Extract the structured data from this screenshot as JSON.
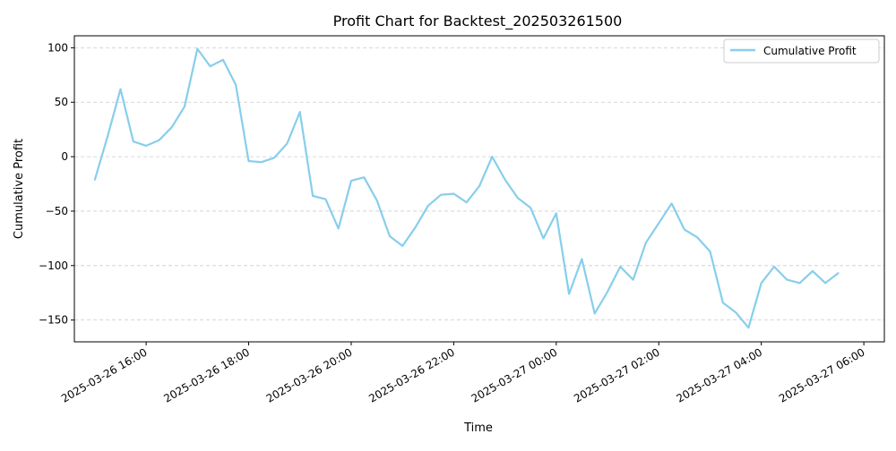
{
  "chart_data": {
    "type": "line",
    "title": "Profit Chart for Backtest_202503261500",
    "xlabel": "Time",
    "ylabel": "Cumulative Profit",
    "x_axis_type": "time",
    "xlim": [
      "2025-03-26 14:36",
      "2025-03-27 06:24"
    ],
    "ylim": [
      -170,
      111
    ],
    "yticks": [
      100,
      50,
      0,
      -50,
      -100,
      -150
    ],
    "ytick_labels": [
      "100",
      "50",
      "0",
      "−50",
      "−100",
      "−150"
    ],
    "xticks": [
      "2025-03-26 16:00",
      "2025-03-26 18:00",
      "2025-03-26 20:00",
      "2025-03-26 22:00",
      "2025-03-27 00:00",
      "2025-03-27 02:00",
      "2025-03-27 04:00",
      "2025-03-27 06:00"
    ],
    "xtick_labels": [
      "2025-03-26 16:00",
      "2025-03-26 18:00",
      "2025-03-26 20:00",
      "2025-03-26 22:00",
      "2025-03-27 00:00",
      "2025-03-27 02:00",
      "2025-03-27 04:00",
      "2025-03-27 06:00"
    ],
    "grid": "horizontal dashed",
    "legend_position": "top-right",
    "colors": {
      "series": "#87ceeb",
      "grid": "#cccccc",
      "axis": "#000000"
    },
    "series": [
      {
        "name": "Cumulative Profit",
        "x": [
          "2025-03-26 15:00",
          "2025-03-26 15:15",
          "2025-03-26 15:30",
          "2025-03-26 15:45",
          "2025-03-26 16:00",
          "2025-03-26 16:15",
          "2025-03-26 16:30",
          "2025-03-26 16:45",
          "2025-03-26 17:00",
          "2025-03-26 17:15",
          "2025-03-26 17:30",
          "2025-03-26 17:45",
          "2025-03-26 18:00",
          "2025-03-26 18:15",
          "2025-03-26 18:30",
          "2025-03-26 18:45",
          "2025-03-26 19:00",
          "2025-03-26 19:15",
          "2025-03-26 19:30",
          "2025-03-26 19:45",
          "2025-03-26 20:00",
          "2025-03-26 20:15",
          "2025-03-26 20:30",
          "2025-03-26 20:45",
          "2025-03-26 21:00",
          "2025-03-26 21:15",
          "2025-03-26 21:30",
          "2025-03-26 21:45",
          "2025-03-26 22:00",
          "2025-03-26 22:15",
          "2025-03-26 22:30",
          "2025-03-26 22:45",
          "2025-03-26 23:00",
          "2025-03-26 23:15",
          "2025-03-26 23:30",
          "2025-03-26 23:45",
          "2025-03-27 00:00",
          "2025-03-27 00:15",
          "2025-03-27 00:30",
          "2025-03-27 00:45",
          "2025-03-27 01:00",
          "2025-03-27 01:15",
          "2025-03-27 01:30",
          "2025-03-27 01:45",
          "2025-03-27 02:00",
          "2025-03-27 02:15",
          "2025-03-27 02:30",
          "2025-03-27 02:45",
          "2025-03-27 03:00",
          "2025-03-27 03:15",
          "2025-03-27 03:30",
          "2025-03-27 03:45",
          "2025-03-27 04:00",
          "2025-03-27 04:15",
          "2025-03-27 04:30",
          "2025-03-27 04:45",
          "2025-03-27 05:00",
          "2025-03-27 05:15",
          "2025-03-27 05:30"
        ],
        "y": [
          -21,
          19,
          62,
          14,
          10,
          15,
          27,
          46,
          99,
          83,
          89,
          66,
          -4,
          -5,
          -1,
          12,
          41,
          -36,
          -39,
          -66,
          -22,
          -19,
          -40,
          -73,
          -82,
          -65,
          -45,
          -35,
          -34,
          -42,
          -27,
          0,
          -21,
          -38,
          -47,
          -75,
          -52,
          -126,
          -94,
          -144,
          -124,
          -101,
          -113,
          -79,
          -61,
          -43,
          -67,
          -74,
          -87,
          -134,
          -143,
          -157,
          -116,
          -101,
          -113,
          -116,
          -105,
          -116,
          -107
        ]
      }
    ]
  }
}
